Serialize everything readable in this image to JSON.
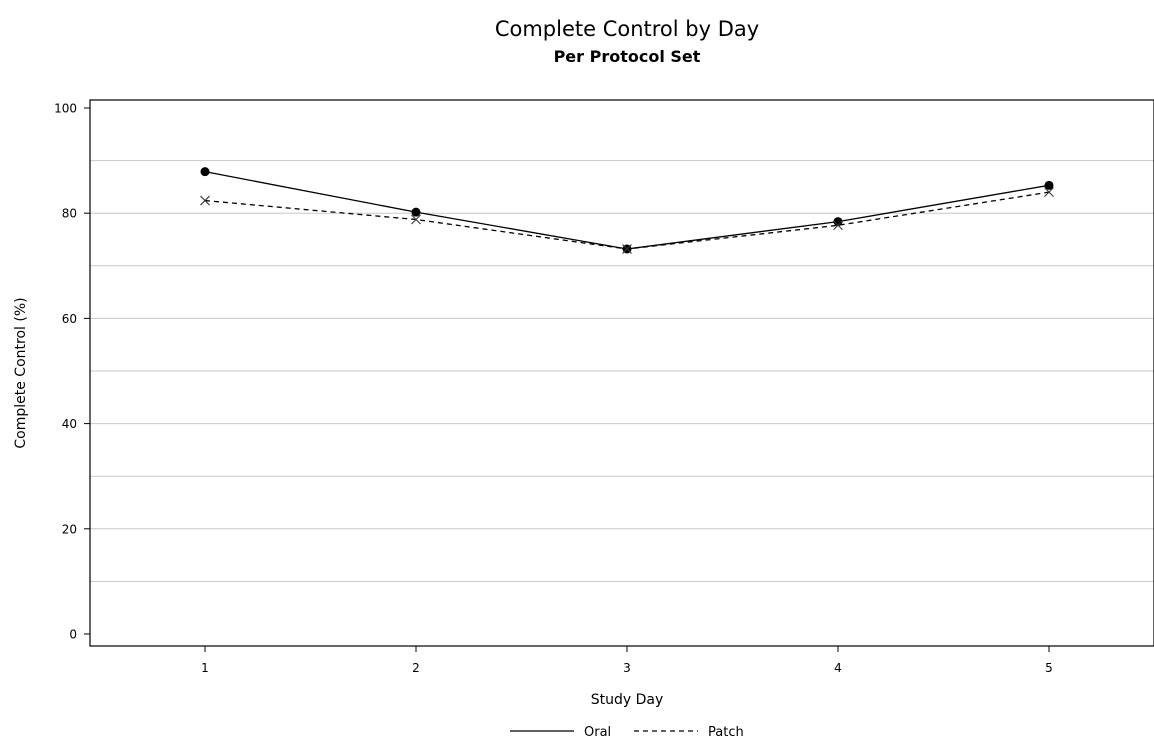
{
  "chart_data": {
    "type": "line",
    "title": "Complete Control by Day",
    "subtitle": "Per Protocol Set",
    "xlabel": "Study Day",
    "ylabel": "Complete Control (%)",
    "categories": [
      "1",
      "2",
      "3",
      "4",
      "5"
    ],
    "ylim": [
      0,
      100
    ],
    "yticks": [
      "0",
      "20",
      "40",
      "60",
      "80",
      "100"
    ],
    "grid": true,
    "legend_position": "bottom-center",
    "series": [
      {
        "name": "Oral",
        "values": [
          87.9,
          80.2,
          73.2,
          78.4,
          85.3
        ],
        "line_style": "solid",
        "marker": "filled-circle",
        "color": "#000000"
      },
      {
        "name": "Patch",
        "values": [
          82.4,
          78.8,
          73.2,
          77.7,
          84.0
        ],
        "line_style": "dashed",
        "marker": "x",
        "color": "#000000"
      }
    ]
  }
}
